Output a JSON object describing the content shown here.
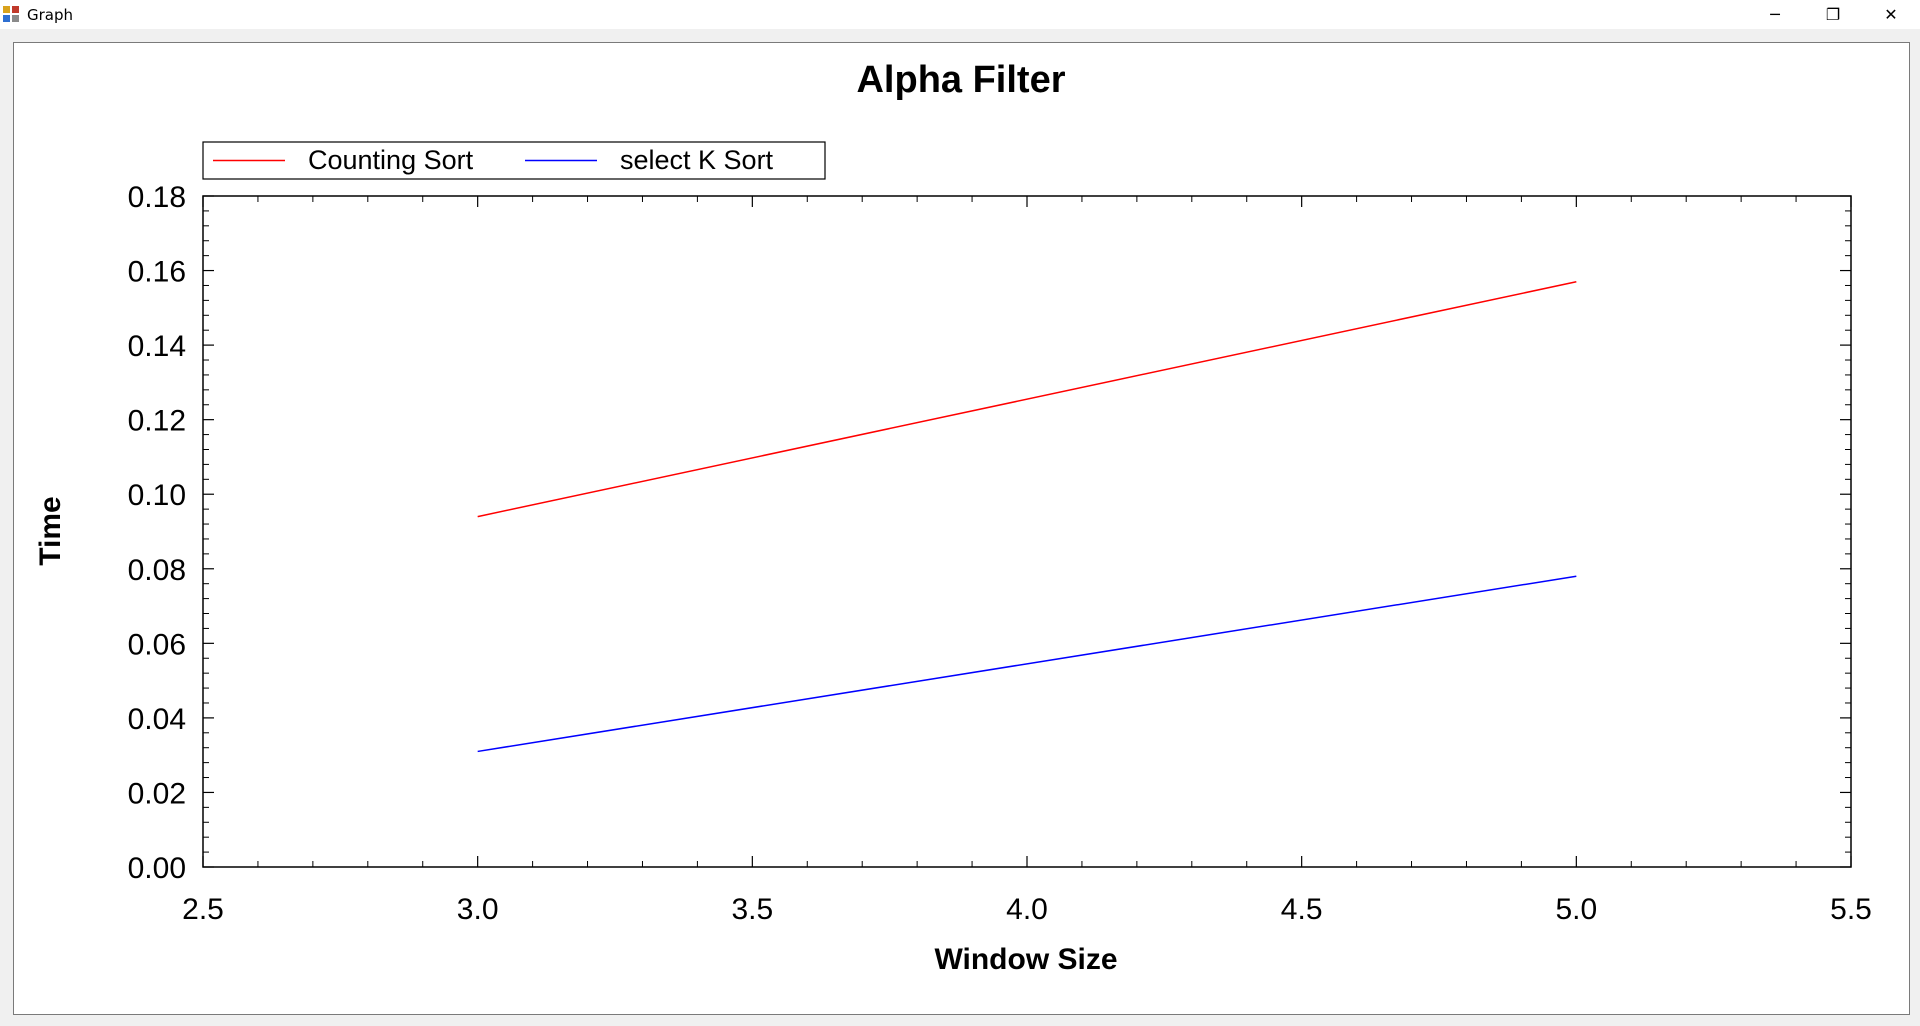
{
  "window": {
    "title": "Graph",
    "icon": "app-form-icon",
    "controls": {
      "minimize": "─",
      "maximize": "❐",
      "close": "✕"
    }
  },
  "chart_data": {
    "type": "line",
    "title": "Alpha Filter",
    "xlabel": "Window Size",
    "ylabel": "Time",
    "xlim": [
      2.5,
      5.5
    ],
    "ylim": [
      0.0,
      0.18
    ],
    "x_ticks": [
      2.5,
      3.0,
      3.5,
      4.0,
      4.5,
      5.0,
      5.5
    ],
    "x_tick_labels": [
      "2.5",
      "3.0",
      "3.5",
      "4.0",
      "4.5",
      "5.0",
      "5.5"
    ],
    "y_ticks": [
      0.0,
      0.02,
      0.04,
      0.06,
      0.08,
      0.1,
      0.12,
      0.14,
      0.16,
      0.18
    ],
    "y_tick_labels": [
      "0.00",
      "0.02",
      "0.04",
      "0.06",
      "0.08",
      "0.10",
      "0.12",
      "0.14",
      "0.16",
      "0.18"
    ],
    "grid": false,
    "legend_position": "top-left",
    "series": [
      {
        "name": "Counting Sort",
        "color": "#ff0000",
        "x": [
          3,
          5
        ],
        "y": [
          0.094,
          0.157
        ]
      },
      {
        "name": "select K Sort",
        "color": "#0000ff",
        "x": [
          3,
          5
        ],
        "y": [
          0.031,
          0.078
        ]
      }
    ]
  }
}
